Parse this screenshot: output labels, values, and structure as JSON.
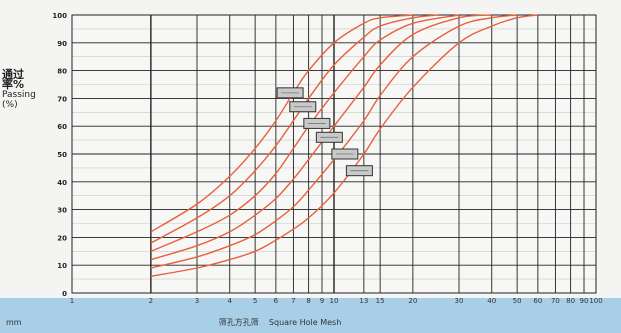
{
  "chart_data": {
    "type": "line",
    "ylabel_cn": "通过率%",
    "ylabel_en": "Passing (%)",
    "xlabel_cn": "筛孔方孔筛",
    "xlabel_en": "Square Hole Mesh",
    "unit_label": "mm",
    "xscale": "log",
    "xlim": [
      1,
      100
    ],
    "ylim": [
      0,
      100
    ],
    "xticks": [
      {
        "v": 1,
        "label": "1"
      },
      {
        "v": 2,
        "label": "2"
      },
      {
        "v": 3,
        "label": "3"
      },
      {
        "v": 4,
        "label": "4"
      },
      {
        "v": 5,
        "label": "5"
      },
      {
        "v": 6,
        "label": "6"
      },
      {
        "v": 7,
        "label": "7"
      },
      {
        "v": 8,
        "label": "8"
      },
      {
        "v": 9,
        "label": "9"
      },
      {
        "v": 10,
        "label": "10"
      },
      {
        "v": 13,
        "label": "13"
      },
      {
        "v": 15,
        "label": "15"
      },
      {
        "v": 20,
        "label": "20"
      },
      {
        "v": 30,
        "label": "30"
      },
      {
        "v": 40,
        "label": "40"
      },
      {
        "v": 50,
        "label": "50"
      },
      {
        "v": 60,
        "label": "60"
      },
      {
        "v": 70,
        "label": "70"
      },
      {
        "v": 80,
        "label": "80"
      },
      {
        "v": 90,
        "label": "90"
      },
      {
        "v": 100,
        "label": "100"
      }
    ],
    "yticks": [
      0,
      10,
      20,
      30,
      40,
      50,
      60,
      70,
      80,
      90,
      100
    ],
    "grid": true,
    "series": [
      {
        "x": [
          2,
          3,
          4,
          5,
          6,
          7,
          8,
          10,
          13,
          15,
          20
        ],
        "y": [
          22,
          32,
          42,
          52,
          62,
          72,
          80,
          90,
          97,
          99,
          100
        ]
      },
      {
        "x": [
          2,
          3,
          4,
          5,
          6,
          7,
          8,
          10,
          13,
          15,
          20,
          25
        ],
        "y": [
          18,
          27,
          35,
          44,
          53,
          62,
          70,
          82,
          92,
          96,
          99,
          100
        ]
      },
      {
        "x": [
          2,
          3,
          4,
          5,
          6,
          7,
          8,
          10,
          13,
          15,
          20,
          30
        ],
        "y": [
          15,
          22,
          28,
          35,
          43,
          52,
          60,
          72,
          85,
          91,
          97,
          100
        ]
      },
      {
        "x": [
          2,
          3,
          4,
          5,
          6,
          7,
          8,
          10,
          13,
          15,
          20,
          30,
          40
        ],
        "y": [
          12,
          17,
          22,
          28,
          34,
          41,
          48,
          60,
          74,
          82,
          93,
          99,
          100
        ]
      },
      {
        "x": [
          2,
          3,
          4,
          5,
          6,
          7,
          8,
          10,
          13,
          15,
          20,
          30,
          40,
          50
        ],
        "y": [
          9,
          13,
          17,
          21,
          26,
          31,
          37,
          48,
          62,
          71,
          85,
          96,
          99,
          100
        ]
      },
      {
        "x": [
          2,
          3,
          4,
          5,
          6,
          7,
          8,
          10,
          13,
          15,
          20,
          30,
          40,
          50,
          60
        ],
        "y": [
          6,
          9,
          12,
          15,
          19,
          23,
          27,
          36,
          50,
          59,
          74,
          90,
          96,
          99,
          100
        ]
      }
    ],
    "tags": [
      {
        "x": 6.8,
        "y": 72
      },
      {
        "x": 7.6,
        "y": 67
      },
      {
        "x": 8.6,
        "y": 61
      },
      {
        "x": 9.6,
        "y": 56
      },
      {
        "x": 11,
        "y": 50
      },
      {
        "x": 12.5,
        "y": 44
      }
    ],
    "colors": {
      "series": "#e8603c",
      "grid_major": "#222222",
      "grid_minor": "#c8c8c8",
      "background": "#f4f4f2",
      "footer": "#a9cfe8",
      "tag_fill": "#c9c9c9",
      "tag_stroke": "#333333"
    }
  }
}
